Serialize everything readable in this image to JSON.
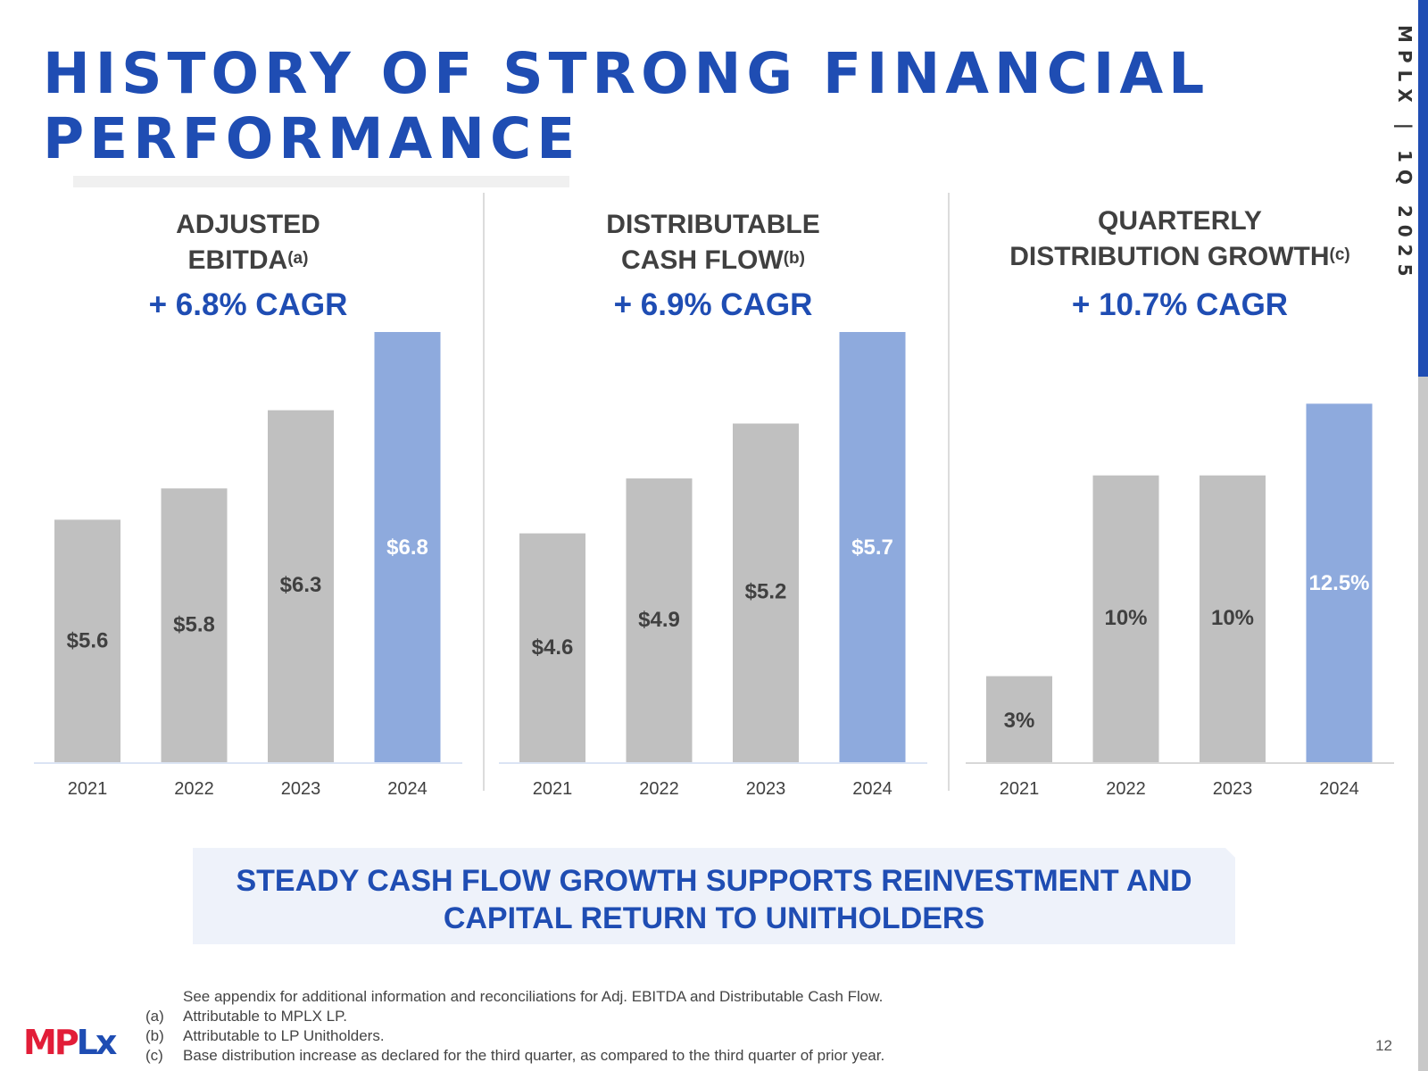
{
  "header": {
    "title_line1": "HISTORY OF STRONG FINANCIAL",
    "title_line2": "PERFORMANCE",
    "side_label": "MPLX | 1Q 2025"
  },
  "colors": {
    "accent": "#1f4db3",
    "bar_gray": "#c0c0c0",
    "bar_highlight": "#8eaadd",
    "logo_red": "#e21d38"
  },
  "panels": [
    {
      "title_line1": "ADJUSTED",
      "title_line2": "EBITDA",
      "footnote_mark": "(a)",
      "cagr": "+ 6.8% CAGR"
    },
    {
      "title_line1": "DISTRIBUTABLE",
      "title_line2": "CASH FLOW",
      "footnote_mark": "(b)",
      "cagr": "+ 6.9% CAGR"
    },
    {
      "title_line1": "QUARTERLY",
      "title_line2": "DISTRIBUTION GROWTH",
      "footnote_mark": "(c)",
      "cagr": "+ 10.7% CAGR"
    }
  ],
  "chart_data": [
    {
      "type": "bar",
      "title": "ADJUSTED EBITDA",
      "categories": [
        "2021",
        "2022",
        "2023",
        "2024"
      ],
      "values": [
        5.6,
        5.8,
        6.3,
        6.8
      ],
      "labels": [
        "$5.6",
        "$5.8",
        "$6.3",
        "$6.8"
      ],
      "highlight_index": 3,
      "ylim": [
        4.05,
        6.8
      ],
      "xlabel": "",
      "ylabel": "",
      "grid": false,
      "legend": "none"
    },
    {
      "type": "bar",
      "title": "DISTRIBUTABLE CASH FLOW",
      "categories": [
        "2021",
        "2022",
        "2023",
        "2024"
      ],
      "values": [
        4.6,
        4.9,
        5.2,
        5.7
      ],
      "labels": [
        "$4.6",
        "$4.9",
        "$5.2",
        "$5.7"
      ],
      "highlight_index": 3,
      "ylim": [
        3.35,
        5.7
      ],
      "xlabel": "",
      "ylabel": "",
      "grid": false,
      "legend": "none"
    },
    {
      "type": "bar",
      "title": "QUARTERLY DISTRIBUTION GROWTH",
      "categories": [
        "2021",
        "2022",
        "2023",
        "2024"
      ],
      "values": [
        3,
        10,
        10,
        12.5
      ],
      "labels": [
        "3%",
        "10%",
        "10%",
        "12.5%"
      ],
      "highlight_index": 3,
      "ylim": [
        0,
        15
      ],
      "xlabel": "",
      "ylabel": "",
      "grid": false,
      "legend": "none"
    }
  ],
  "callout": {
    "line1": "STEADY CASH FLOW GROWTH SUPPORTS REINVESTMENT AND",
    "line2": "CAPITAL RETURN TO UNITHOLDERS"
  },
  "footnotes": {
    "intro": "See appendix for additional information and reconciliations for Adj. EBITDA and Distributable Cash Flow.",
    "items": [
      {
        "mark": "(a)",
        "text": "Attributable to MPLX LP."
      },
      {
        "mark": "(b)",
        "text": "Attributable to LP Unitholders."
      },
      {
        "mark": "(c)",
        "text": "Base distribution increase as declared for the third quarter, as compared to the third quarter of prior year."
      }
    ]
  },
  "logo": {
    "part1": "MP",
    "part2": "Lx"
  },
  "page_number": "12"
}
